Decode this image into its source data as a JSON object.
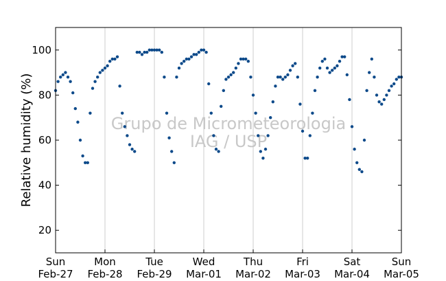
{
  "chart_data": {
    "type": "scatter",
    "title": "",
    "xlabel": "",
    "ylabel": "Relative humidity (%)",
    "ylim": [
      10,
      110
    ],
    "xlim_days": [
      0,
      7
    ],
    "y_ticks": [
      20,
      40,
      60,
      80,
      100
    ],
    "x_ticks": [
      {
        "day": "Sun",
        "date": "Feb-27"
      },
      {
        "day": "Mon",
        "date": "Feb-28"
      },
      {
        "day": "Tue",
        "date": "Feb-29"
      },
      {
        "day": "Wed",
        "date": "Mar-01"
      },
      {
        "day": "Thu",
        "date": "Mar-02"
      },
      {
        "day": "Fri",
        "date": "Mar-03"
      },
      {
        "day": "Sat",
        "date": "Mar-04"
      },
      {
        "day": "Sun",
        "date": "Mar-05"
      }
    ],
    "grid": "vertical",
    "marker_color": "#0d4a8a",
    "watermark": [
      "Grupo de Micrometeorologia",
      "IAG / USP"
    ],
    "series": [
      {
        "x": [
          0.0,
          0.05,
          0.1,
          0.15,
          0.2,
          0.25,
          0.3,
          0.35,
          0.4,
          0.45,
          0.5,
          0.55,
          0.6,
          0.65,
          0.7,
          0.75,
          0.8,
          0.85,
          0.9,
          0.95,
          1.0,
          1.05,
          1.1,
          1.15,
          1.2,
          1.25,
          1.3,
          1.35,
          1.4,
          1.45,
          1.5,
          1.55,
          1.6,
          1.65,
          1.7,
          1.75,
          1.8,
          1.85,
          1.9,
          1.95,
          2.0,
          2.05,
          2.1,
          2.15,
          2.2,
          2.25,
          2.3,
          2.35,
          2.4,
          2.45,
          2.5,
          2.55,
          2.6,
          2.65,
          2.7,
          2.75,
          2.8,
          2.85,
          2.9,
          2.95,
          3.0,
          3.05,
          3.1,
          3.15,
          3.2,
          3.25,
          3.3,
          3.35,
          3.4,
          3.45,
          3.5,
          3.55,
          3.6,
          3.65,
          3.7,
          3.75,
          3.8,
          3.85,
          3.9,
          3.95,
          4.0,
          4.05,
          4.1,
          4.15,
          4.2,
          4.25,
          4.3,
          4.35,
          4.4,
          4.45,
          4.5,
          4.55,
          4.6,
          4.65,
          4.7,
          4.75,
          4.8,
          4.85,
          4.9,
          4.95,
          5.0,
          5.05,
          5.1,
          5.15,
          5.2,
          5.25,
          5.3,
          5.35,
          5.4,
          5.45,
          5.5,
          5.55,
          5.6,
          5.65,
          5.7,
          5.75,
          5.8,
          5.85,
          5.9,
          5.95,
          6.0,
          6.05,
          6.1,
          6.15,
          6.2,
          6.25,
          6.3,
          6.35,
          6.4,
          6.45,
          6.5,
          6.55,
          6.6,
          6.65,
          6.7,
          6.75,
          6.8,
          6.85,
          6.9,
          6.95,
          7.0
        ],
        "y": [
          82,
          86,
          88,
          89,
          90,
          88,
          86,
          81,
          74,
          68,
          60,
          53,
          50,
          50,
          72,
          83,
          86,
          88,
          90,
          91,
          92,
          93,
          95,
          96,
          96,
          97,
          84,
          72,
          66,
          62,
          58,
          56,
          55,
          99,
          99,
          98,
          99,
          99,
          100,
          100,
          100,
          100,
          100,
          99,
          88,
          72,
          61,
          55,
          50,
          88,
          92,
          94,
          95,
          96,
          96,
          97,
          98,
          98,
          99,
          100,
          100,
          99,
          85,
          72,
          62,
          56,
          55,
          75,
          82,
          87,
          88,
          89,
          90,
          92,
          94,
          96,
          96,
          96,
          95,
          88,
          80,
          72,
          62,
          55,
          52,
          56,
          62,
          70,
          77,
          84,
          88,
          88,
          87,
          88,
          89,
          91,
          93,
          94,
          88,
          76,
          64,
          52,
          52,
          62,
          72,
          82,
          88,
          92,
          95,
          96,
          92,
          90,
          91,
          92,
          93,
          95,
          97,
          97,
          89,
          78,
          66,
          56,
          50,
          47,
          46,
          60,
          82,
          90,
          96,
          88,
          80,
          77,
          76,
          78,
          80,
          82,
          84,
          85,
          87,
          88,
          88
        ]
      }
    ]
  }
}
